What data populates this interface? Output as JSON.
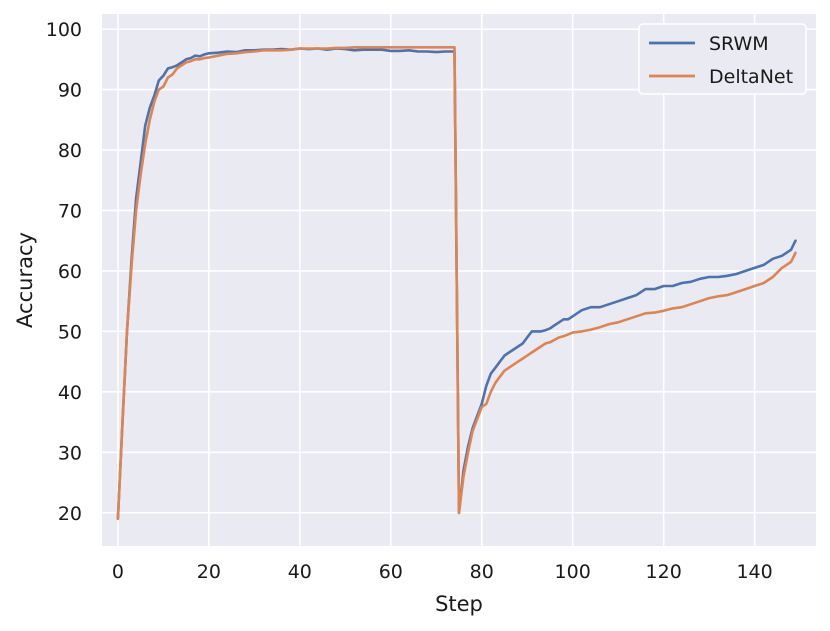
{
  "chart_data": {
    "type": "line",
    "title": "",
    "xlabel": "Step",
    "ylabel": "Accuracy",
    "xlim": [
      -3.5,
      153.5
    ],
    "ylim": [
      14.5,
      102.5
    ],
    "xticks": [
      0,
      20,
      40,
      60,
      80,
      100,
      120,
      140
    ],
    "yticks": [
      20,
      30,
      40,
      50,
      60,
      70,
      80,
      90,
      100
    ],
    "grid": true,
    "legend_position": "top-right",
    "background_color": "#eaeaf2",
    "series": [
      {
        "name": "SRWM",
        "color": "#4c72b0",
        "x": [
          0,
          1,
          2,
          3,
          4,
          5,
          6,
          7,
          8,
          9,
          10,
          11,
          12,
          13,
          14,
          15,
          16,
          17,
          18,
          19,
          20,
          22,
          24,
          26,
          28,
          30,
          32,
          34,
          36,
          38,
          40,
          42,
          44,
          46,
          48,
          50,
          52,
          54,
          56,
          58,
          60,
          62,
          64,
          66,
          68,
          70,
          72,
          74,
          75,
          76,
          77,
          78,
          79,
          80,
          81,
          82,
          83,
          84,
          85,
          86,
          87,
          88,
          89,
          90,
          91,
          92,
          93,
          94,
          95,
          96,
          97,
          98,
          99,
          100,
          102,
          104,
          106,
          108,
          110,
          112,
          114,
          116,
          118,
          120,
          122,
          124,
          126,
          128,
          130,
          132,
          134,
          136,
          138,
          140,
          142,
          144,
          146,
          148,
          149
        ],
        "y": [
          19,
          35,
          50,
          62,
          72,
          78,
          84,
          87,
          89,
          91.5,
          92.3,
          93.5,
          93.7,
          94,
          94.5,
          95,
          95.2,
          95.6,
          95.5,
          95.8,
          96,
          96.1,
          96.3,
          96.2,
          96.5,
          96.5,
          96.6,
          96.6,
          96.7,
          96.6,
          96.8,
          96.7,
          96.8,
          96.6,
          96.8,
          96.7,
          96.5,
          96.6,
          96.6,
          96.6,
          96.4,
          96.4,
          96.5,
          96.3,
          96.3,
          96.2,
          96.3,
          96.3,
          20,
          27,
          31,
          34,
          36,
          38,
          41,
          43,
          44,
          45,
          46,
          46.5,
          47,
          47.5,
          48,
          49,
          50,
          50,
          50,
          50.2,
          50.5,
          51,
          51.5,
          52,
          52,
          52.5,
          53.5,
          54,
          54,
          54.5,
          55,
          55.5,
          56,
          57,
          57,
          57.5,
          57.5,
          58,
          58.2,
          58.7,
          59,
          59,
          59.2,
          59.5,
          60,
          60.5,
          61,
          62,
          62.5,
          63.5,
          65
        ]
      },
      {
        "name": "DeltaNet",
        "color": "#dd8452",
        "x": [
          0,
          1,
          2,
          3,
          4,
          5,
          6,
          7,
          8,
          9,
          10,
          11,
          12,
          13,
          14,
          15,
          16,
          17,
          18,
          19,
          20,
          22,
          24,
          26,
          28,
          30,
          32,
          34,
          36,
          38,
          40,
          42,
          44,
          46,
          48,
          50,
          52,
          54,
          56,
          58,
          60,
          62,
          64,
          66,
          68,
          70,
          72,
          74,
          75,
          76,
          77,
          78,
          79,
          80,
          81,
          82,
          83,
          84,
          85,
          86,
          87,
          88,
          89,
          90,
          91,
          92,
          93,
          94,
          95,
          96,
          97,
          98,
          99,
          100,
          102,
          104,
          106,
          108,
          110,
          112,
          114,
          116,
          118,
          120,
          122,
          124,
          126,
          128,
          130,
          132,
          134,
          136,
          138,
          140,
          142,
          144,
          146,
          148,
          149
        ],
        "y": [
          19,
          35,
          50,
          61,
          70,
          76,
          81,
          85,
          88,
          90,
          90.5,
          92,
          92.5,
          93.5,
          94,
          94.5,
          94.7,
          95,
          95,
          95.2,
          95.3,
          95.6,
          95.9,
          96,
          96.2,
          96.3,
          96.5,
          96.5,
          96.5,
          96.6,
          96.8,
          96.8,
          96.8,
          96.8,
          96.9,
          96.9,
          97,
          97,
          97,
          97,
          97,
          97,
          97,
          97,
          97,
          97,
          97,
          97,
          20,
          26,
          30,
          33.5,
          35.5,
          37.5,
          38,
          40,
          41.5,
          42.5,
          43.5,
          44,
          44.5,
          45,
          45.5,
          46,
          46.5,
          47,
          47.5,
          48,
          48.2,
          48.6,
          49,
          49.2,
          49.5,
          49.8,
          50,
          50.3,
          50.7,
          51.2,
          51.5,
          52,
          52.5,
          53,
          53.1,
          53.4,
          53.8,
          54,
          54.5,
          55,
          55.5,
          55.8,
          56,
          56.5,
          57,
          57.5,
          58,
          59,
          60.5,
          61.5,
          63
        ]
      }
    ]
  }
}
